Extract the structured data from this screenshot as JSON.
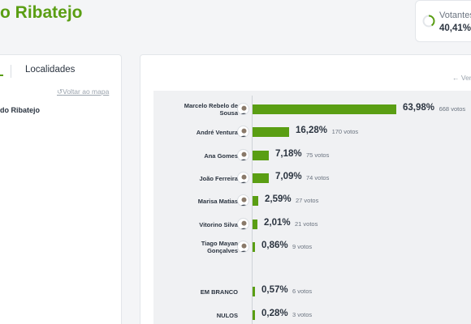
{
  "header": {
    "title": "o Ribatejo"
  },
  "turnout": {
    "label": "Votantes",
    "value": "40,41%",
    "fraction": 0.4041
  },
  "tabs": {
    "localidades": "Localidades"
  },
  "nav": {
    "back_to_map": "Voltar ao mapa",
    "view_more": "Ver"
  },
  "district": {
    "label": "do Ribatejo"
  },
  "colors": {
    "accent": "#5a9e13",
    "text": "#2b3440",
    "muted": "#6b7480"
  },
  "candidates": [
    {
      "name_lines": [
        "Marcelo Rebelo de",
        "Sousa"
      ],
      "pct_label": "63,98%",
      "value": 63.98,
      "votes": "668 votos",
      "icon": "avatar-icon"
    },
    {
      "name_lines": [
        "André Ventura"
      ],
      "pct_label": "16,28%",
      "value": 16.28,
      "votes": "170 votos",
      "icon": "avatar-icon"
    },
    {
      "name_lines": [
        "Ana Gomes"
      ],
      "pct_label": "7,18%",
      "value": 7.18,
      "votes": "75 votos",
      "icon": "avatar-icon"
    },
    {
      "name_lines": [
        "João Ferreira"
      ],
      "pct_label": "7,09%",
      "value": 7.09,
      "votes": "74 votos",
      "icon": "avatar-icon"
    },
    {
      "name_lines": [
        "Marisa Matias"
      ],
      "pct_label": "2,59%",
      "value": 2.59,
      "votes": "27 votos",
      "icon": "avatar-icon"
    },
    {
      "name_lines": [
        "Vitorino Silva"
      ],
      "pct_label": "2,01%",
      "value": 2.01,
      "votes": "21 votos",
      "icon": "avatar-icon"
    },
    {
      "name_lines": [
        "Tiago Mayan",
        "Gonçalves"
      ],
      "pct_label": "0,86%",
      "value": 0.86,
      "votes": "9 votos",
      "icon": "avatar-icon"
    }
  ],
  "others": [
    {
      "name": "EM BRANCO",
      "pct_label": "0,57%",
      "value": 0.57,
      "votes": "6 votos"
    },
    {
      "name": "NULOS",
      "pct_label": "0,28%",
      "value": 0.28,
      "votes": "3 votos"
    }
  ]
}
